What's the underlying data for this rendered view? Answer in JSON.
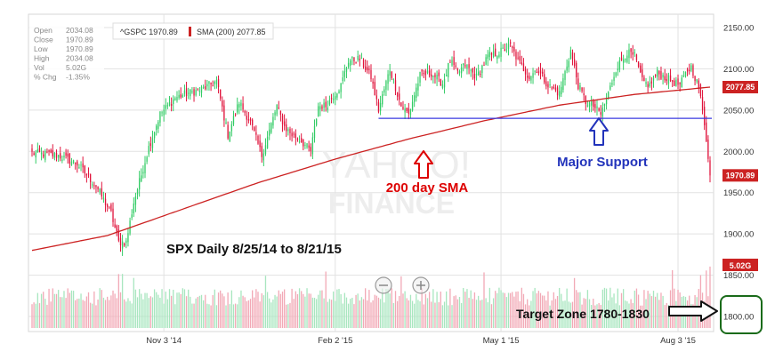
{
  "info_box": {
    "rows": [
      {
        "label": "Open",
        "value": "2034.08"
      },
      {
        "label": "Close",
        "value": "1970.89"
      },
      {
        "label": "Low",
        "value": "1970.89"
      },
      {
        "label": "High",
        "value": "2034.08"
      },
      {
        "label": "Vol",
        "value": "5.02G"
      },
      {
        "label": "% Chg",
        "value": "-1.35%"
      }
    ]
  },
  "legend": {
    "symbol_label": "^GSPC 1970.89",
    "sma_label": "SMA (200) 2077.85"
  },
  "watermark": {
    "line1": "YAHOO!",
    "line2": "FINANCE"
  },
  "annotations": {
    "title": "SPX Daily 8/25/14 to 8/21/15",
    "sma": "200 day SMA",
    "support": "Major Support",
    "target": "Target Zone 1780-1830"
  },
  "price_badges": {
    "sma": "2077.85",
    "close": "1970.89",
    "volume": "5.02G"
  },
  "colors": {
    "up": "#33cc66",
    "down": "#e0143c",
    "sma": "#cc2222",
    "support_line": "#3b3be0",
    "annotation_red": "#dd0000",
    "annotation_blue": "#2233bb",
    "target_box": "#1a6b1a",
    "grid": "#e2e2e2"
  },
  "chart_data": {
    "type": "candlestick",
    "title": "SPX Daily 8/25/14 to 8/21/15",
    "y_axis_side": "right",
    "ylim": [
      1780,
      2160
    ],
    "y_ticks": [
      "2150.00",
      "2100.00",
      "2050.00",
      "2000.00",
      "1950.00",
      "1900.00",
      "1850.00",
      "1800.00"
    ],
    "x_ticks": [
      "Nov 3 '14",
      "Feb 2 '15",
      "May 1 '15",
      "Aug 3 '15"
    ],
    "x_tick_days": [
      70,
      161,
      249,
      343
    ],
    "n_days": 361,
    "support_level": 2040,
    "support_start_day": 184,
    "target_zone": [
      1780,
      1830
    ],
    "sma_badge_value": 2077.85,
    "close_badge_value": 1970.89,
    "close_anchors": [
      [
        0,
        1998
      ],
      [
        14,
        1995
      ],
      [
        24,
        1985
      ],
      [
        34,
        1958
      ],
      [
        42,
        1925
      ],
      [
        46,
        1890
      ],
      [
        50,
        1890
      ],
      [
        54,
        1938
      ],
      [
        62,
        2005
      ],
      [
        68,
        2045
      ],
      [
        76,
        2065
      ],
      [
        82,
        2070
      ],
      [
        90,
        2075
      ],
      [
        98,
        2085
      ],
      [
        104,
        2020
      ],
      [
        110,
        2060
      ],
      [
        116,
        2035
      ],
      [
        122,
        1995
      ],
      [
        130,
        2055
      ],
      [
        134,
        2030
      ],
      [
        138,
        2020
      ],
      [
        142,
        2015
      ],
      [
        148,
        2000
      ],
      [
        152,
        2055
      ],
      [
        156,
        2055
      ],
      [
        164,
        2080
      ],
      [
        168,
        2110
      ],
      [
        174,
        2112
      ],
      [
        180,
        2090
      ],
      [
        184,
        2050
      ],
      [
        190,
        2100
      ],
      [
        196,
        2055
      ],
      [
        200,
        2045
      ],
      [
        206,
        2092
      ],
      [
        212,
        2095
      ],
      [
        218,
        2082
      ],
      [
        222,
        2110
      ],
      [
        226,
        2095
      ],
      [
        230,
        2105
      ],
      [
        236,
        2090
      ],
      [
        242,
        2115
      ],
      [
        248,
        2120
      ],
      [
        254,
        2128
      ],
      [
        258,
        2110
      ],
      [
        264,
        2090
      ],
      [
        268,
        2100
      ],
      [
        274,
        2080
      ],
      [
        280,
        2070
      ],
      [
        286,
        2122
      ],
      [
        290,
        2080
      ],
      [
        294,
        2060
      ],
      [
        298,
        2055
      ],
      [
        302,
        2045
      ],
      [
        306,
        2070
      ],
      [
        310,
        2100
      ],
      [
        316,
        2120
      ],
      [
        320,
        2115
      ],
      [
        324,
        2085
      ],
      [
        328,
        2080
      ],
      [
        332,
        2095
      ],
      [
        336,
        2090
      ],
      [
        340,
        2085
      ],
      [
        344,
        2080
      ],
      [
        348,
        2098
      ],
      [
        350,
        2102
      ],
      [
        354,
        2078
      ],
      [
        357,
        2034
      ],
      [
        358,
        2015
      ],
      [
        359,
        1995
      ],
      [
        360,
        1970.89
      ]
    ],
    "sma_anchors": [
      [
        0,
        1880
      ],
      [
        40,
        1898
      ],
      [
        80,
        1930
      ],
      [
        120,
        1962
      ],
      [
        160,
        1990
      ],
      [
        200,
        2015
      ],
      [
        240,
        2037
      ],
      [
        280,
        2056
      ],
      [
        320,
        2069
      ],
      [
        360,
        2077.85
      ]
    ],
    "volume_profile": {
      "baseline_height_fraction": 0.35,
      "spikes_days": [
        46,
        48,
        54,
        124,
        156,
        196,
        240,
        288,
        340,
        355,
        358,
        360
      ],
      "last_volume_label": "5.02G"
    }
  }
}
